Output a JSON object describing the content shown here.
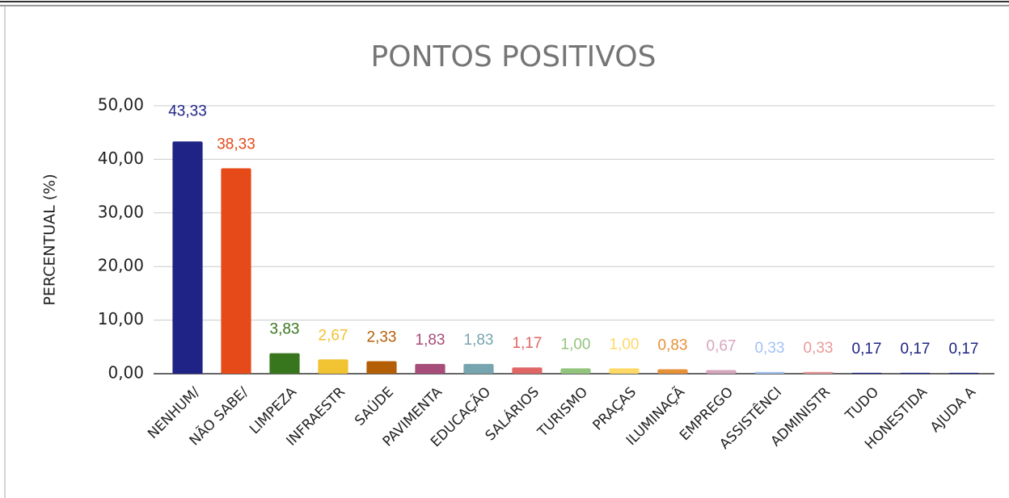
{
  "chart_data": {
    "type": "bar",
    "title": "PONTOS POSITIVOS",
    "y_label": "PERCENTUAL (%)",
    "categories": [
      "NENHUM/",
      "NÃO SABE/",
      "LIMPEZA",
      "INFRAESTR",
      "SAÚDE",
      "PAVIMENTA",
      "EDUCAÇÃO",
      "SALÁRIOS",
      "TURISMO",
      "PRAÇAS",
      "ILUMINAÇÃ",
      "EMPREGO",
      "ASSISTÊNCI",
      "ADMINISTR",
      "TUDO",
      "HONESTIDA",
      "AJUDA A"
    ],
    "values": [
      43.33,
      38.33,
      3.83,
      2.67,
      2.33,
      1.83,
      1.83,
      1.17,
      1.0,
      1.0,
      0.83,
      0.67,
      0.33,
      0.33,
      0.17,
      0.17,
      0.17
    ],
    "value_labels": [
      "43,33",
      "38,33",
      "3,83",
      "2,67",
      "2,33",
      "1,83",
      "1,83",
      "1,17",
      "1,00",
      "1,00",
      "0,83",
      "0,67",
      "0,33",
      "0,33",
      "0,17",
      "0,17",
      "0,17"
    ],
    "colors": [
      "#1f2385",
      "#e64a19",
      "#38761d",
      "#f1c232",
      "#b45f06",
      "#a64d79",
      "#76a5af",
      "#e06666",
      "#93c47d",
      "#ffd966",
      "#e69138",
      "#d5a6bd",
      "#a4c2f4",
      "#ea9999",
      "#1f2385",
      "#1f2385",
      "#1f2385"
    ],
    "ylim": [
      0,
      50
    ],
    "yticks": [
      {
        "value": 0,
        "label": "0,00"
      },
      {
        "value": 10,
        "label": "10,00"
      },
      {
        "value": 20,
        "label": "20,00"
      },
      {
        "value": 30,
        "label": "30,00"
      },
      {
        "value": 40,
        "label": "40,00"
      },
      {
        "value": 50,
        "label": "50,00"
      }
    ],
    "grid": true
  }
}
